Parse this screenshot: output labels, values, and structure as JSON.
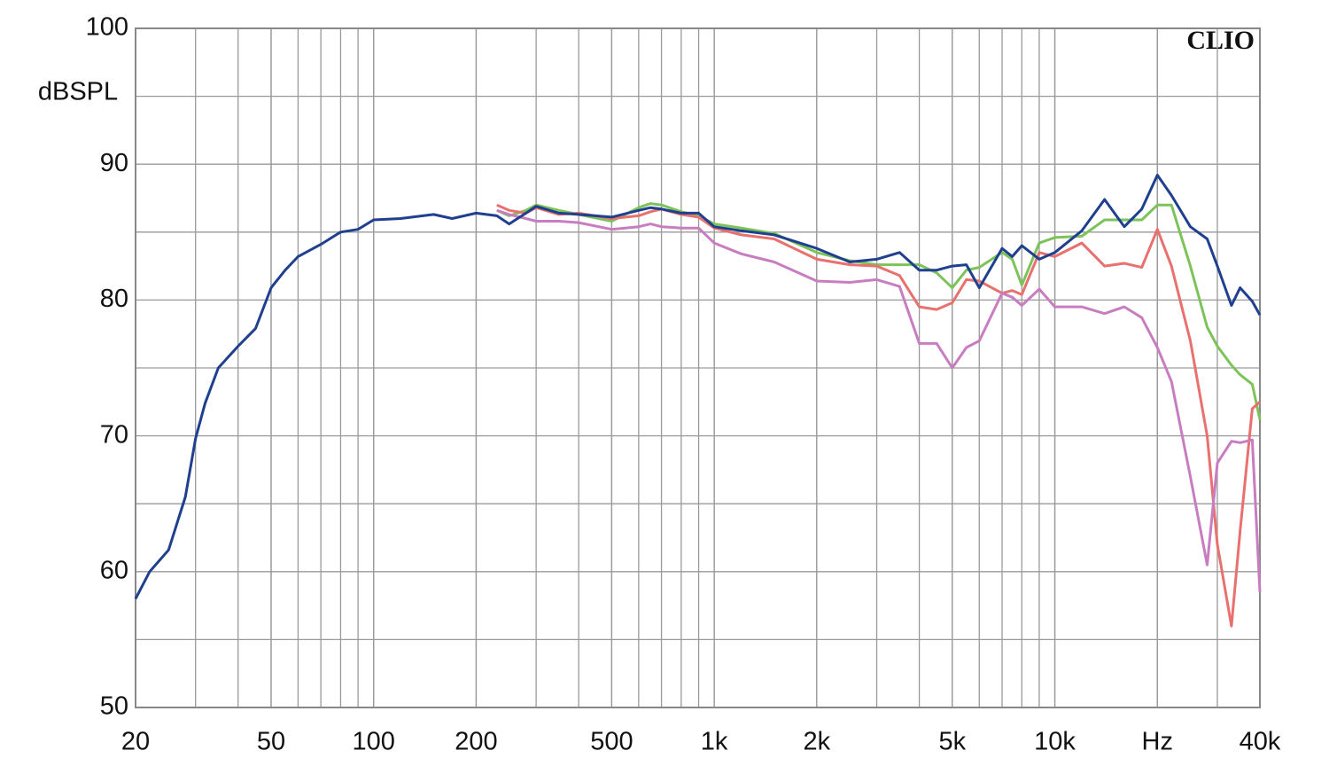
{
  "chart_data": {
    "type": "line",
    "ylabel": "dBSPL",
    "annotation": "CLIO",
    "xscale": "log",
    "grid": true,
    "xlim": [
      20,
      40000
    ],
    "ylim": [
      50,
      100
    ],
    "yticks": [
      50,
      60,
      70,
      80,
      90,
      100
    ],
    "xticks": [
      20,
      50,
      100,
      200,
      500,
      {
        "value": 1000,
        "label": "1k"
      },
      {
        "value": 2000,
        "label": "2k"
      },
      {
        "value": 5000,
        "label": "5k"
      },
      {
        "value": 10000,
        "label": "10k"
      },
      {
        "value": 20000,
        "label": "Hz"
      },
      {
        "value": 40000,
        "label": "40k"
      }
    ],
    "x": [
      20,
      22,
      25,
      28,
      30,
      32,
      35,
      40,
      45,
      50,
      55,
      60,
      70,
      80,
      90,
      100,
      120,
      150,
      170,
      200,
      230,
      250,
      280,
      300,
      350,
      400,
      500,
      600,
      650,
      700,
      800,
      900,
      1000,
      1200,
      1500,
      2000,
      2500,
      3000,
      3500,
      4000,
      4500,
      5000,
      5500,
      6000,
      7000,
      7500,
      8000,
      9000,
      10000,
      12000,
      14000,
      16000,
      18000,
      20000,
      22000,
      25000,
      28000,
      30000,
      33000,
      35000,
      38000,
      40000
    ],
    "series": [
      {
        "color": "#7cc35a",
        "values": [
          null,
          null,
          null,
          null,
          null,
          null,
          null,
          null,
          null,
          null,
          null,
          null,
          null,
          null,
          null,
          null,
          null,
          null,
          null,
          null,
          86.6,
          86.2,
          86.6,
          87.0,
          86.6,
          86.3,
          85.8,
          86.8,
          87.1,
          87.0,
          86.5,
          86.2,
          85.6,
          85.3,
          84.9,
          83.5,
          82.9,
          82.6,
          82.6,
          82.6,
          82.0,
          80.9,
          82.2,
          82.4,
          83.5,
          83.0,
          81.1,
          84.2,
          84.6,
          84.7,
          85.9,
          85.9,
          85.9,
          87.0,
          87.0,
          82.5,
          78,
          76.6,
          75.2,
          74.5,
          73.8,
          71.2
        ]
      },
      {
        "color": "#e8706e",
        "values": [
          null,
          null,
          null,
          null,
          null,
          null,
          null,
          null,
          null,
          null,
          null,
          null,
          null,
          null,
          null,
          null,
          null,
          null,
          null,
          null,
          87.0,
          86.6,
          86.4,
          86.8,
          86.3,
          86.4,
          86.0,
          86.2,
          86.5,
          86.7,
          86.3,
          86.1,
          85.3,
          84.8,
          84.5,
          83.0,
          82.6,
          82.5,
          81.8,
          79.5,
          79.3,
          79.8,
          81.5,
          81.4,
          80.5,
          80.7,
          80.4,
          83.5,
          83.2,
          84.2,
          82.5,
          82.7,
          82.4,
          85.2,
          82.5,
          77,
          70,
          62,
          56,
          63,
          72,
          72.5
        ]
      },
      {
        "color": "#c77dc0",
        "values": [
          null,
          null,
          null,
          null,
          null,
          null,
          null,
          null,
          null,
          null,
          null,
          null,
          null,
          null,
          null,
          null,
          null,
          null,
          null,
          null,
          86.6,
          86.3,
          86.0,
          85.8,
          85.8,
          85.7,
          85.2,
          85.4,
          85.6,
          85.4,
          85.3,
          85.3,
          84.2,
          83.4,
          82.8,
          81.4,
          81.3,
          81.5,
          81,
          76.8,
          76.8,
          75.0,
          76.5,
          77.0,
          80.5,
          80.2,
          79.6,
          80.8,
          79.5,
          79.5,
          79,
          79.5,
          78.7,
          76.5,
          74,
          67,
          60.5,
          68,
          69.6,
          69.5,
          69.7,
          58.5
        ]
      },
      {
        "color": "#1f3f8f",
        "values": [
          58.0,
          60,
          61.6,
          65.5,
          69.8,
          72.4,
          75,
          76.6,
          77.9,
          80.9,
          82.2,
          83.2,
          84.1,
          85,
          85.2,
          85.9,
          86,
          86.3,
          86,
          86.4,
          86.2,
          85.6,
          86.4,
          86.9,
          86.4,
          86.3,
          86.1,
          86.6,
          86.8,
          86.7,
          86.4,
          86.4,
          85.4,
          85.1,
          84.8,
          83.8,
          82.8,
          83.0,
          83.5,
          82.2,
          82.2,
          82.5,
          82.6,
          80.9,
          83.8,
          83.2,
          84,
          83,
          83.5,
          85.1,
          87.4,
          85.4,
          86.7,
          89.2,
          87.7,
          85.4,
          84.5,
          82.5,
          79.6,
          80.9,
          79.9,
          78.9
        ]
      }
    ]
  }
}
